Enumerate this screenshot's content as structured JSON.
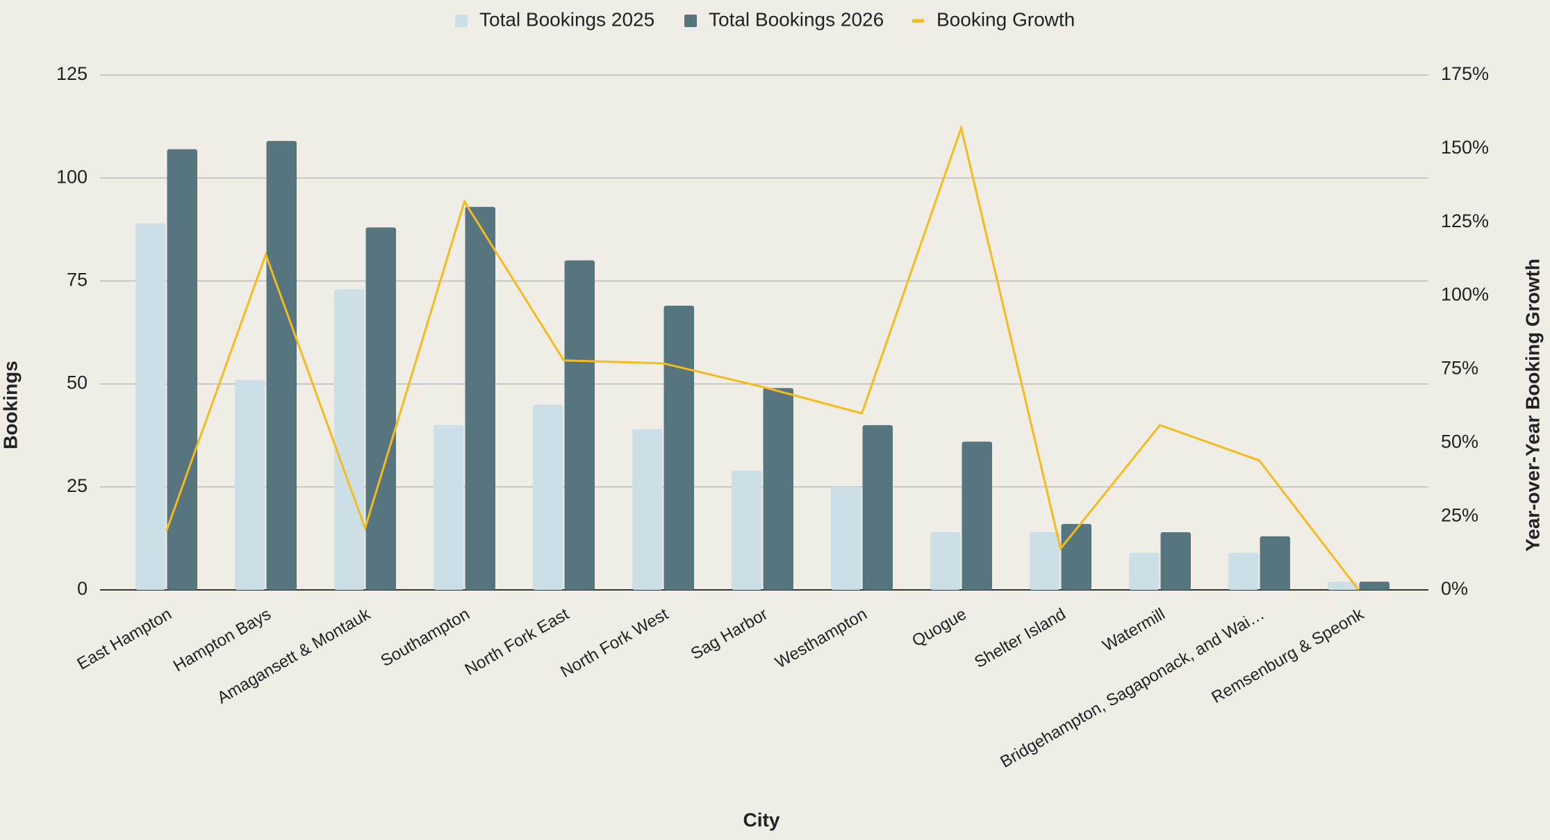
{
  "chart_data": {
    "type": "bar",
    "x_label": "City",
    "y_label": "Bookings",
    "y2_label": "Year-over-Year Booking Growth",
    "categories": [
      "East Hampton",
      "Hampton Bays",
      "Amagansett & Montauk",
      "Southampton",
      "North Fork East",
      "North Fork West",
      "Sag Harbor",
      "Westhampton",
      "Quogue",
      "Shelter Island",
      "Watermill",
      "Bridgehampton, Sagaponack, and Wai…",
      "Remsenburg & Speonk"
    ],
    "series": [
      {
        "name": "Total Bookings 2025",
        "type": "bar",
        "color": "#ccdfe6",
        "values": [
          89,
          51,
          73,
          40,
          45,
          39,
          29,
          25,
          14,
          14,
          9,
          9,
          2
        ]
      },
      {
        "name": "Total Bookings 2026",
        "type": "bar",
        "color": "#56757f",
        "values": [
          107,
          109,
          88,
          93,
          80,
          69,
          49,
          40,
          36,
          16,
          14,
          13,
          2
        ]
      },
      {
        "name": "Booking Growth",
        "type": "line",
        "axis": "y2",
        "color": "#f6bb1a",
        "values": [
          20,
          114,
          21,
          132,
          78,
          77,
          69,
          60,
          157,
          14,
          56,
          44,
          0
        ]
      }
    ],
    "ylim": [
      0,
      125
    ],
    "yticks": [
      0,
      25,
      50,
      75,
      100,
      125
    ],
    "y2lim": [
      0,
      175
    ],
    "y2ticks": [
      {
        "value": 0,
        "label": "0%"
      },
      {
        "value": 25,
        "label": "25%"
      },
      {
        "value": 50,
        "label": "50%"
      },
      {
        "value": 75,
        "label": "75%"
      },
      {
        "value": 100,
        "label": "100%"
      },
      {
        "value": 125,
        "label": "125%"
      },
      {
        "value": 150,
        "label": "150%"
      },
      {
        "value": 175,
        "label": "175%"
      }
    ],
    "grid": true,
    "legend": "top"
  }
}
